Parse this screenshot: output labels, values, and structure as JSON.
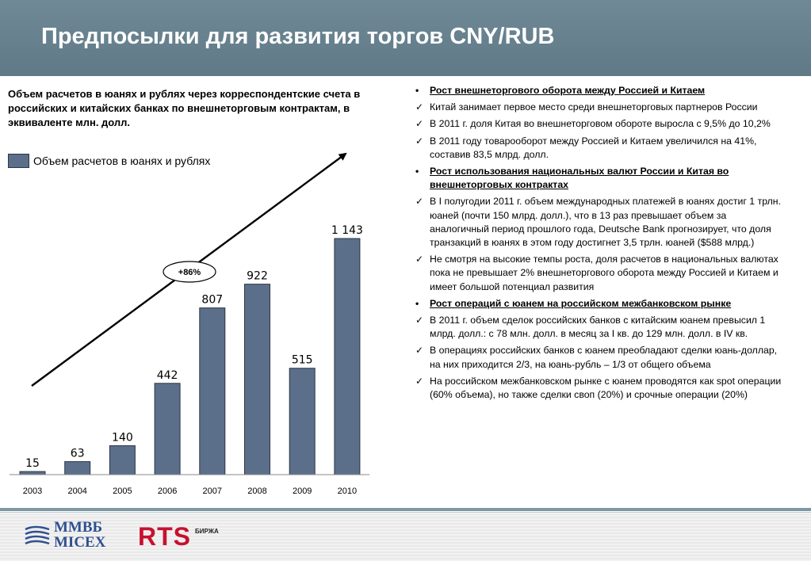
{
  "header": {
    "title": "Предпосылки для развития торгов CNY/RUB"
  },
  "chart_heading": "Объем расчетов в юанях и рублях через корреспондентские счета в российских и китайских банках по внешнеторговым контрактам, в эквиваленте млн. долл.",
  "chart_data": {
    "type": "bar",
    "categories": [
      "2003",
      "2004",
      "2005",
      "2006",
      "2007",
      "2008",
      "2009",
      "2010"
    ],
    "series": [
      {
        "name": "Объем расчетов в юанях и рублях",
        "values": [
          15,
          63,
          140,
          442,
          807,
          922,
          515,
          1143
        ]
      }
    ],
    "data_labels": [
      "15",
      "63",
      "140",
      "442",
      "807",
      "922",
      "515",
      "1 143"
    ],
    "ylim": [
      0,
      1143
    ],
    "legend": "top-left",
    "grid": false,
    "annotation": "+86%",
    "color": "#5b6f8b"
  },
  "bullets": [
    {
      "kind": "heading",
      "mark": "•",
      "text": "Рост внешнеторгового оборота между Россией и Китаем"
    },
    {
      "kind": "check",
      "mark": "✓",
      "text": "Китай занимает первое место среди внешнеторговых партнеров России"
    },
    {
      "kind": "check",
      "mark": "✓",
      "text": "В 2011 г. доля Китая во внешнеторговом обороте выросла с 9,5% до 10,2%"
    },
    {
      "kind": "check",
      "mark": "✓",
      "text": "В  2011 году товарооборот между Россией и Китаем увеличился на 41%, составив 83,5 млрд. долл."
    },
    {
      "kind": "heading",
      "mark": "•",
      "text": "Рост использования национальных валют России и Китая  во внешнеторговых контрактах"
    },
    {
      "kind": "check",
      "mark": "✓",
      "text": "В  I полугодии 2011 г. объем международных платежей в юанях достиг 1 трлн. юаней  (почти 150 млрд. долл.), что в 13 раз превышает объем за аналогичный период прошлого года, Deutsche Bank прогнозирует, что доля транзакций в юанях в этом году достигнет 3,5 трлн. юаней ($588 млрд.)"
    },
    {
      "kind": "check",
      "mark": "✓",
      "text": "Не смотря на высокие темпы роста, доля расчетов в национальных валютах пока не превышает 2% внешнеторгового оборота между Россией и Китаем и имеет большой потенциал развития"
    },
    {
      "kind": "heading",
      "mark": "•",
      "text": "Рост операций с юанем на российском межбанковском рынке"
    },
    {
      "kind": "check",
      "mark": "✓",
      "text": "В 2011 г. объем сделок российских банков с китайским юанем превысил 1 млрд. долл.: с 78 млн. долл. в месяц за I кв. до 129 млн. долл. в IV кв."
    },
    {
      "kind": "check",
      "mark": "✓",
      "text": "В операциях российских банков с юанем преобладают сделки юань-доллар, на них приходится 2/3, на юань-рубль – 1/3 от общего объема"
    },
    {
      "kind": "check",
      "mark": "✓",
      "text": "На российском межбанковском рынке с юанем проводятся как spot операции (60% объема), но также сделки своп (20%) и срочные операции (20%)"
    }
  ],
  "footer": {
    "micex_line1": "ММВБ",
    "micex_line2": "MICEX",
    "rts_name": "RTS",
    "rts_sub": "БИРЖА"
  }
}
